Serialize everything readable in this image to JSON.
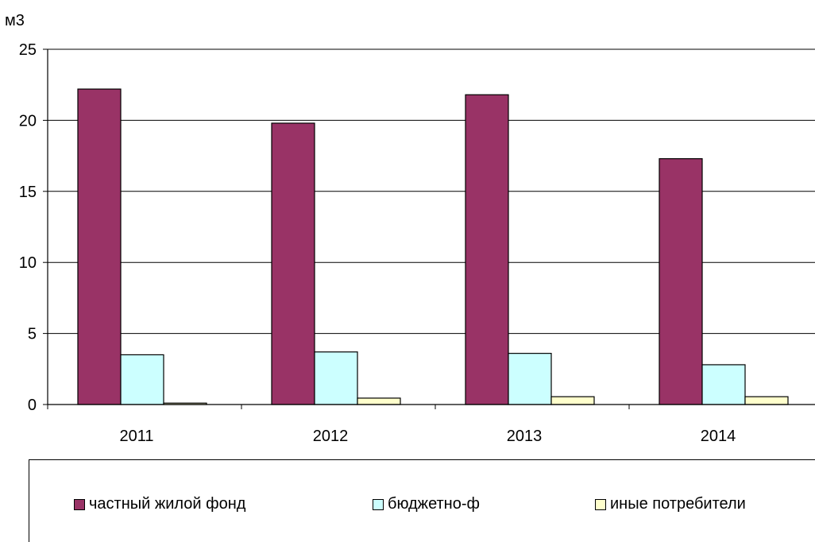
{
  "chart_data": {
    "type": "bar",
    "ylabel": "м3",
    "categories": [
      "2011",
      "2012",
      "2013",
      "2014"
    ],
    "series": [
      {
        "name": "частный жилой фонд",
        "values": [
          22.2,
          19.8,
          21.8,
          17.3
        ],
        "color": "#993366"
      },
      {
        "name": "бюджетно-ф",
        "values": [
          3.5,
          3.7,
          3.6,
          2.8
        ],
        "color": "#ccffff"
      },
      {
        "name": "иные потребители",
        "values": [
          0.1,
          0.45,
          0.55,
          0.55
        ],
        "color": "#ffffcc"
      }
    ],
    "ylim": [
      0,
      25
    ],
    "yticks": [
      "0",
      "5",
      "10",
      "15",
      "20",
      "25"
    ],
    "grid": true,
    "legend": "bottom"
  }
}
